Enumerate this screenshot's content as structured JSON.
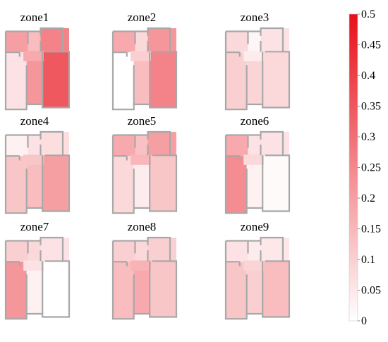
{
  "chart_data": {
    "type": "heatmap",
    "panels": [
      {
        "title": "zone1",
        "rooms": {
          "tl": 0.2,
          "tm": 0.14,
          "tr": 0.26,
          "bl": 0.06,
          "bm": 0.22,
          "br": 0.35,
          "corr": 0.18
        }
      },
      {
        "title": "zone2",
        "rooms": {
          "tl": 0.18,
          "tm": 0.08,
          "tr": 0.22,
          "bl": 0.0,
          "bm": 0.14,
          "br": 0.26,
          "corr": 0.1
        }
      },
      {
        "title": "zone3",
        "rooms": {
          "tl": 0.08,
          "tm": 0.02,
          "tr": 0.06,
          "bl": 0.1,
          "bm": 0.09,
          "br": 0.08,
          "corr": 0.04
        }
      },
      {
        "title": "zone4",
        "rooms": {
          "tl": 0.03,
          "tm": 0.06,
          "tr": 0.07,
          "bl": 0.12,
          "bm": 0.14,
          "br": 0.2,
          "corr": 0.12
        }
      },
      {
        "title": "zone5",
        "rooms": {
          "tl": 0.18,
          "tm": 0.13,
          "tr": 0.2,
          "bl": 0.08,
          "bm": 0.04,
          "br": 0.12,
          "corr": 0.15
        }
      },
      {
        "title": "zone6",
        "rooms": {
          "tl": 0.18,
          "tm": 0.06,
          "tr": 0.06,
          "bl": 0.24,
          "bm": 0.03,
          "br": 0.01,
          "corr": 0.08
        }
      },
      {
        "title": "zone7",
        "rooms": {
          "tl": 0.1,
          "tm": 0.08,
          "tr": 0.06,
          "bl": 0.22,
          "bm": 0.03,
          "br": 0.0,
          "corr": 0.06
        }
      },
      {
        "title": "zone8",
        "rooms": {
          "tl": 0.1,
          "tm": 0.08,
          "tr": 0.1,
          "bl": 0.14,
          "bm": 0.18,
          "br": 0.12,
          "corr": 0.16
        }
      },
      {
        "title": "zone9",
        "rooms": {
          "tl": 0.06,
          "tm": 0.04,
          "tr": 0.05,
          "bl": 0.12,
          "bm": 0.1,
          "br": 0.14,
          "corr": 0.09
        }
      }
    ],
    "colorbar": {
      "min": 0,
      "max": 0.5,
      "ticks": [
        "0",
        "0.05",
        "0.1",
        "0.15",
        "0.2",
        "0.25",
        "0.3",
        "0.35",
        "0.4",
        "0.45",
        "0.5"
      ],
      "color_low": "#ffffff",
      "color_high": "#e8101a"
    }
  }
}
